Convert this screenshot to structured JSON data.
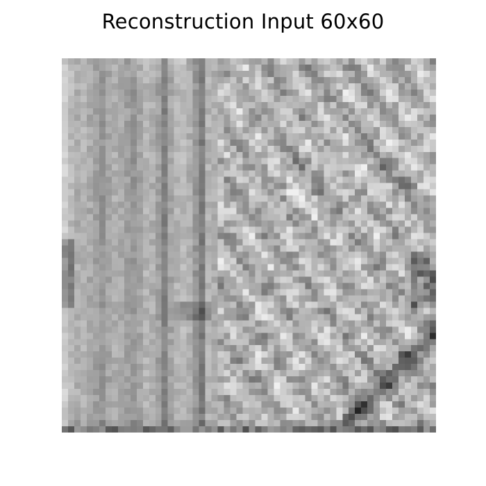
{
  "figure": {
    "title": "Reconstruction Input 60x60"
  },
  "image": {
    "description_name": "grayscale-reconstruction-input",
    "grid_cols": 60,
    "grid_rows": 60,
    "colormap": "gray"
  }
}
